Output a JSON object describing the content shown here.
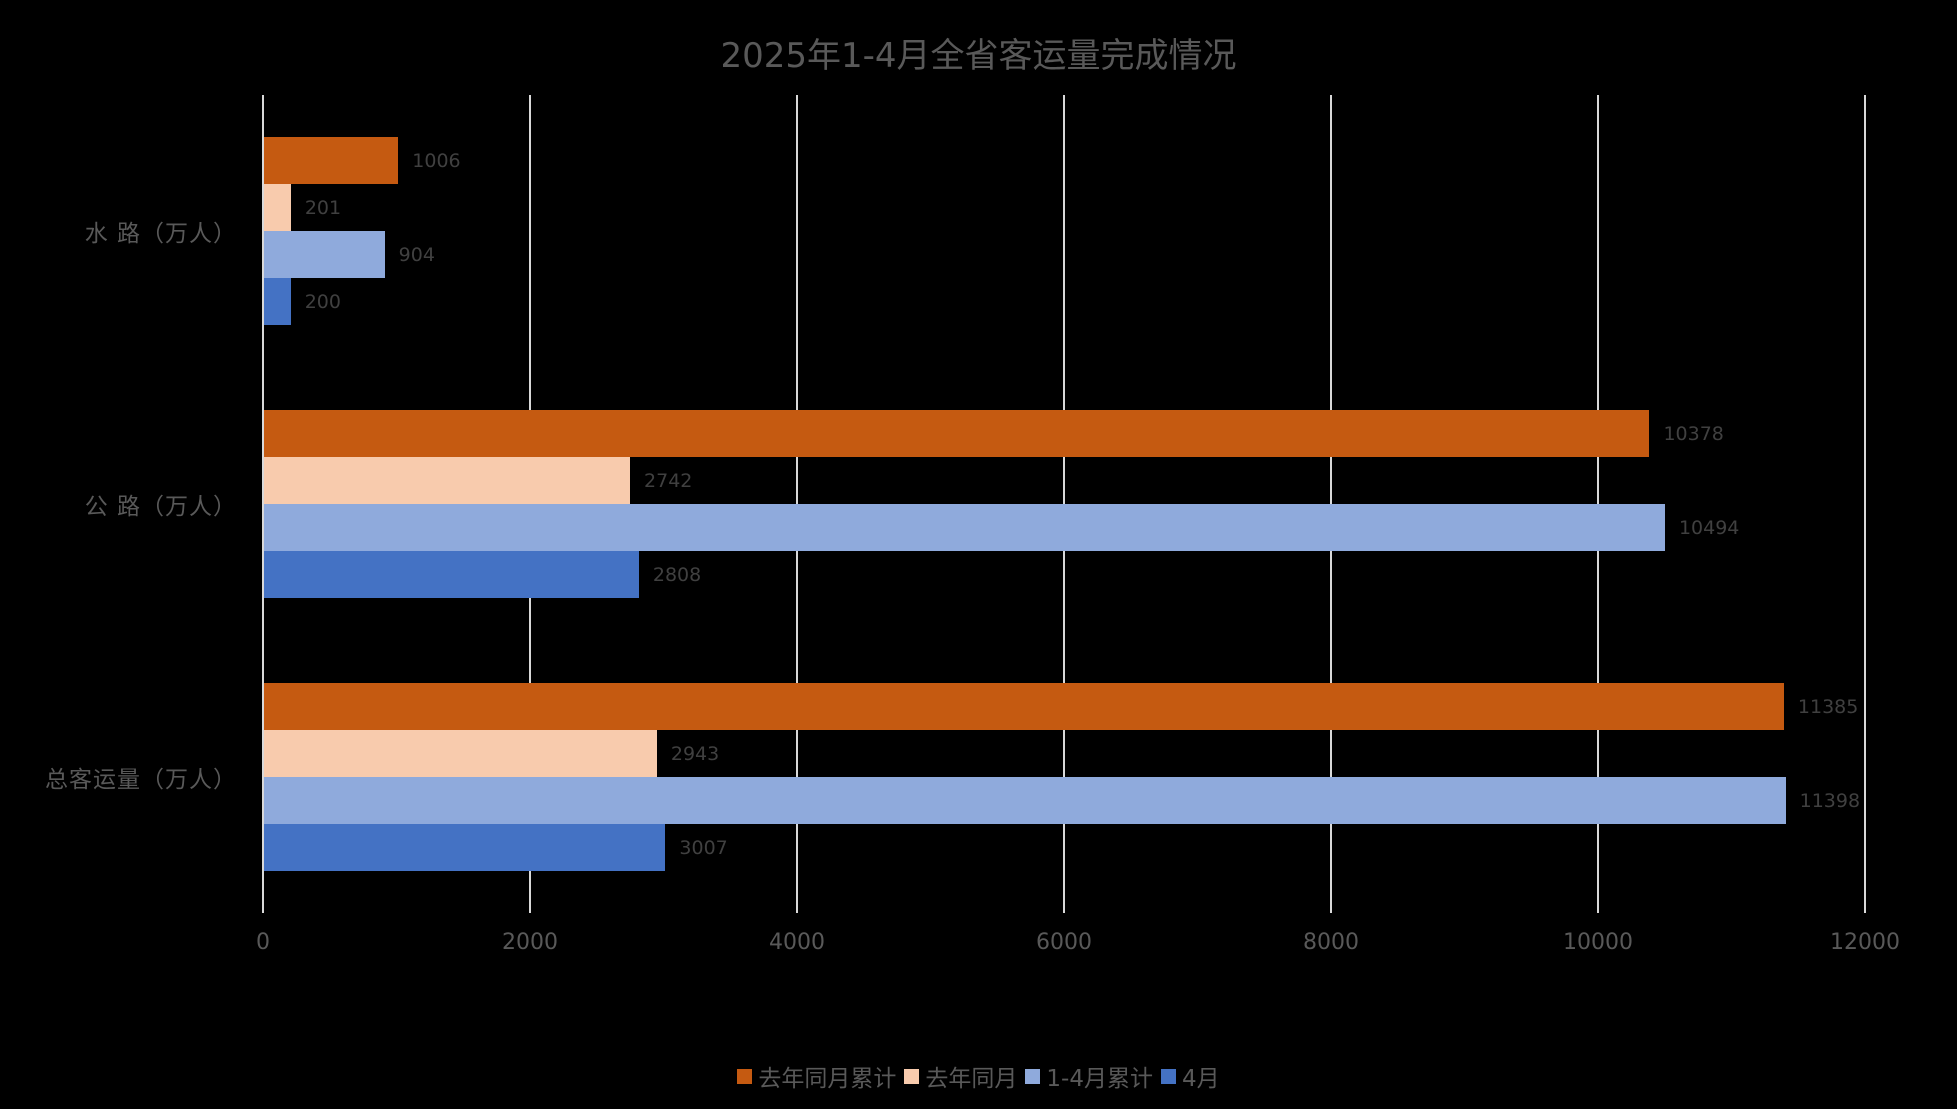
{
  "title": "2025年1-4月全省客运量完成情况",
  "colors": {
    "s0": "#C55A11",
    "s1": "#F8CBAD",
    "s2": "#8FAADC",
    "s3": "#4472C4"
  },
  "legend": [
    "去年同月累计",
    "去年同月",
    "1-4月累计",
    "4月"
  ],
  "x_ticks": [
    "0",
    "2000",
    "4000",
    "6000",
    "8000",
    "10000",
    "12000"
  ],
  "categories": [
    "水 路（万人）",
    "公 路（万人）",
    "总客运量（万人）"
  ],
  "chart_data": {
    "type": "bar",
    "orientation": "horizontal",
    "title": "2025年1-4月全省客运量完成情况",
    "categories": [
      "水 路（万人）",
      "公 路（万人）",
      "总客运量（万人）"
    ],
    "series": [
      {
        "name": "去年同月累计",
        "color": "#C55A11",
        "values": [
          1006,
          10378,
          11385
        ]
      },
      {
        "name": "去年同月",
        "color": "#F8CBAD",
        "values": [
          201,
          2742,
          2943
        ]
      },
      {
        "name": "1-4月累计",
        "color": "#8FAADC",
        "values": [
          904,
          10494,
          11398
        ]
      },
      {
        "name": "4月",
        "color": "#4472C4",
        "values": [
          200,
          2808,
          3007
        ]
      }
    ],
    "xlabel": "",
    "ylabel": "",
    "xlim": [
      0,
      12000
    ],
    "x_ticks": [
      0,
      2000,
      4000,
      6000,
      8000,
      10000,
      12000
    ],
    "grid": "vertical",
    "legend_position": "bottom",
    "data_labels": true
  }
}
